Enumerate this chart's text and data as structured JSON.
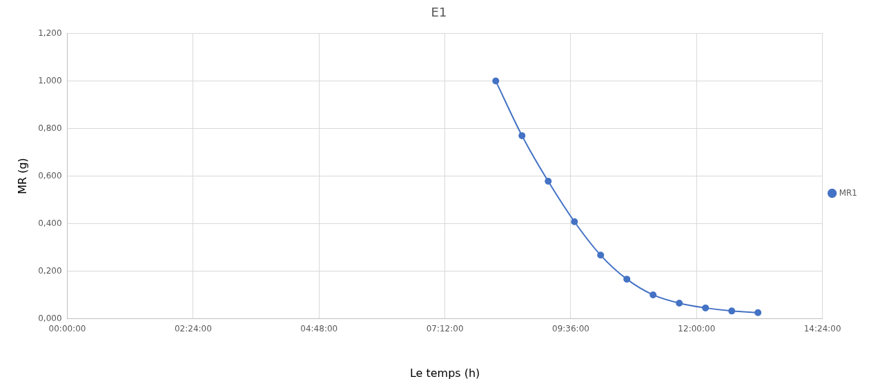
{
  "chart_data": {
    "type": "line",
    "title": "E1",
    "xlabel": "Le temps (h)",
    "ylabel": "MR (g)",
    "x": [
      8.17,
      8.67,
      9.17,
      9.67,
      10.17,
      10.67,
      11.17,
      11.67,
      12.17,
      12.67,
      13.17
    ],
    "series": [
      {
        "name": "MR1",
        "color": "#4472c4",
        "values": [
          1.0,
          0.77,
          0.578,
          0.408,
          0.267,
          0.166,
          0.1,
          0.065,
          0.045,
          0.032,
          0.025
        ]
      }
    ],
    "xlim": [
      0,
      14.4
    ],
    "xticks": [
      {
        "value": 0,
        "label": "00:00:00"
      },
      {
        "value": 2.4,
        "label": "02:24:00"
      },
      {
        "value": 4.8,
        "label": "04:48:00"
      },
      {
        "value": 7.2,
        "label": "07:12:00"
      },
      {
        "value": 9.6,
        "label": "09:36:00"
      },
      {
        "value": 12,
        "label": "12:00:00"
      },
      {
        "value": 14.4,
        "label": "14:24:00"
      }
    ],
    "ylim": [
      0,
      1.2
    ],
    "yticks": [
      {
        "value": 0,
        "label": "0,000"
      },
      {
        "value": 0.2,
        "label": "0,200"
      },
      {
        "value": 0.4,
        "label": "0,400"
      },
      {
        "value": 0.6,
        "label": "0,600"
      },
      {
        "value": 0.8,
        "label": "0,800"
      },
      {
        "value": 1,
        "label": "1,000"
      },
      {
        "value": 1.2,
        "label": "1,200"
      }
    ],
    "grid": true,
    "legend": "right",
    "marker": "circle",
    "line_style": "solid"
  }
}
